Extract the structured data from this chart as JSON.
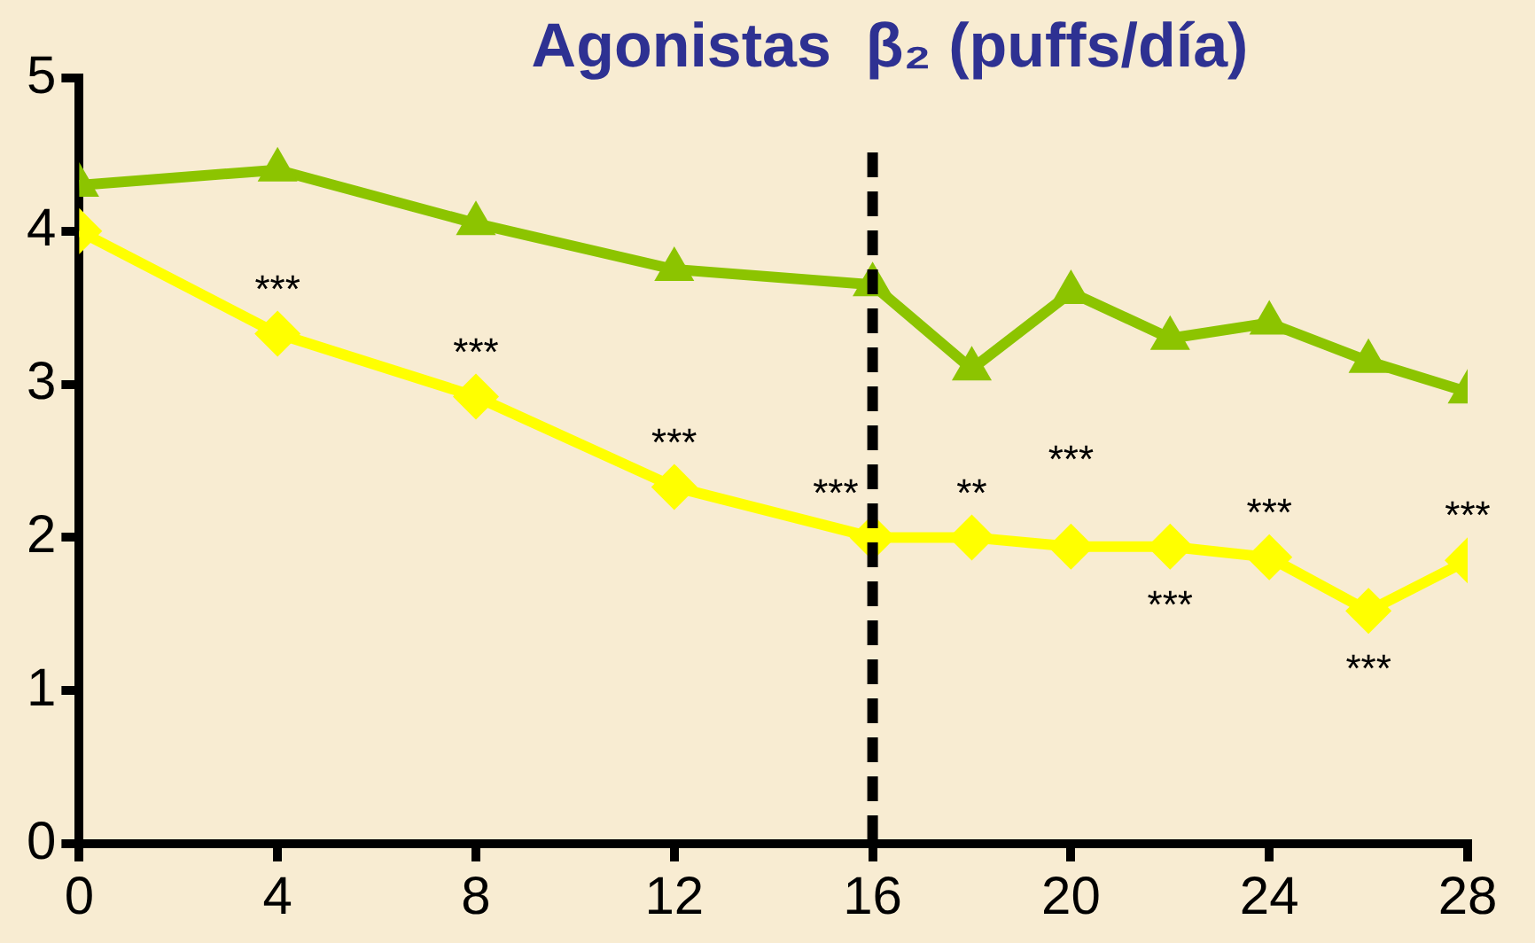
{
  "chart_data": {
    "type": "line",
    "title": "Agonistas  β₂ (puffs/día)",
    "x": [
      0,
      4,
      8,
      12,
      16,
      18,
      20,
      22,
      24,
      26,
      28
    ],
    "series": [
      {
        "color": "#8cc400",
        "marker": "triangle",
        "values": [
          4.3,
          4.4,
          4.05,
          3.75,
          3.65,
          3.1,
          3.6,
          3.3,
          3.4,
          3.15,
          2.95
        ]
      },
      {
        "color": "#ffff00",
        "marker": "diamond",
        "values": [
          4.0,
          3.33,
          2.92,
          2.33,
          2.0,
          2.0,
          1.94,
          1.94,
          1.87,
          1.52,
          1.85
        ]
      }
    ],
    "xlim": [
      0,
      28
    ],
    "xticks": [
      0,
      4,
      8,
      12,
      16,
      20,
      24,
      28
    ],
    "ylim": [
      0,
      5
    ],
    "yticks": [
      0,
      1,
      2,
      3,
      4,
      5
    ],
    "grid": false,
    "legend": false,
    "line_style": "solid",
    "ref_lines": [
      {
        "axis": "x",
        "value": 16,
        "color": "#000000",
        "line_style": "dashed"
      }
    ],
    "annotations": [
      {
        "text": "***",
        "x": 4,
        "y": 3.33
      },
      {
        "text": "***",
        "x": 8,
        "y": 2.92
      },
      {
        "text": "***",
        "x": 12,
        "y": 2.33
      },
      {
        "text": "***",
        "x": 16,
        "y": 2.0
      },
      {
        "text": "**",
        "x": 18,
        "y": 2.0
      },
      {
        "text": "***",
        "x": 20,
        "y": 1.94
      },
      {
        "text": "***",
        "x": 22,
        "y": 1.94
      },
      {
        "text": "***",
        "x": 24,
        "y": 1.87
      },
      {
        "text": "***",
        "x": 26,
        "y": 1.52
      },
      {
        "text": "***",
        "x": 28,
        "y": 1.85
      }
    ]
  }
}
